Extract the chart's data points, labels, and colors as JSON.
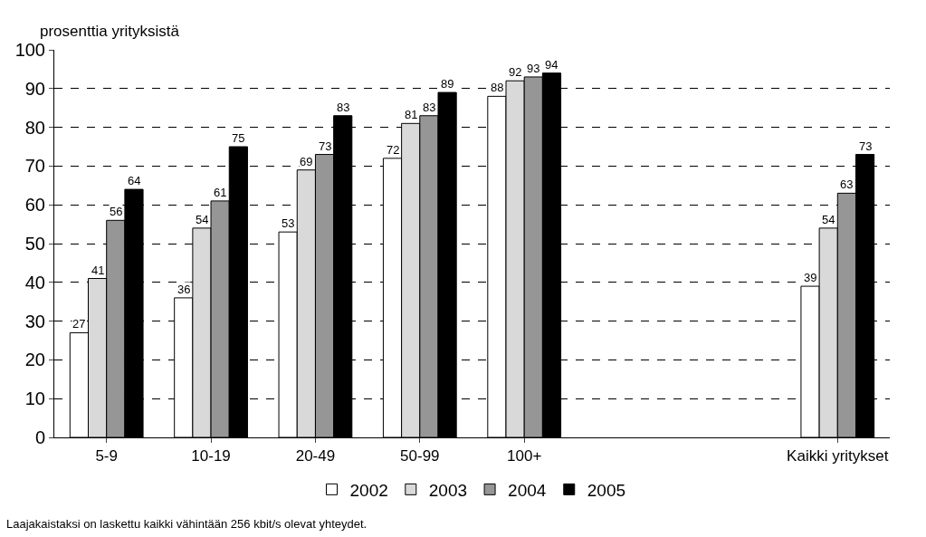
{
  "chart_data": {
    "type": "bar",
    "ylabel": "prosenttia yrityksistä",
    "categories": [
      "5-9",
      "10-19",
      "20-49",
      "50-99",
      "100+",
      null,
      null,
      "Kaikki yritykset"
    ],
    "series": [
      {
        "name": "2002",
        "color": "#ffffff",
        "values": [
          27,
          36,
          53,
          72,
          88,
          null,
          null,
          39
        ]
      },
      {
        "name": "2003",
        "color": "#d9d9d9",
        "values": [
          41,
          54,
          69,
          81,
          92,
          null,
          null,
          54
        ]
      },
      {
        "name": "2004",
        "color": "#969696",
        "values": [
          56,
          61,
          73,
          83,
          93,
          null,
          null,
          63
        ]
      },
      {
        "name": "2005",
        "color": "#000000",
        "values": [
          64,
          75,
          83,
          89,
          94,
          null,
          null,
          73
        ]
      }
    ],
    "ylim": [
      0,
      100
    ],
    "yticks": [
      0,
      10,
      20,
      30,
      40,
      50,
      60,
      70,
      80,
      90,
      100
    ],
    "grid": "y",
    "legend": "bottom",
    "data_labels": true,
    "annotations": [
      "Laajakaistaksi on laskettu kaikki vähintään 256 kbit/s olevat yhteydet."
    ]
  }
}
